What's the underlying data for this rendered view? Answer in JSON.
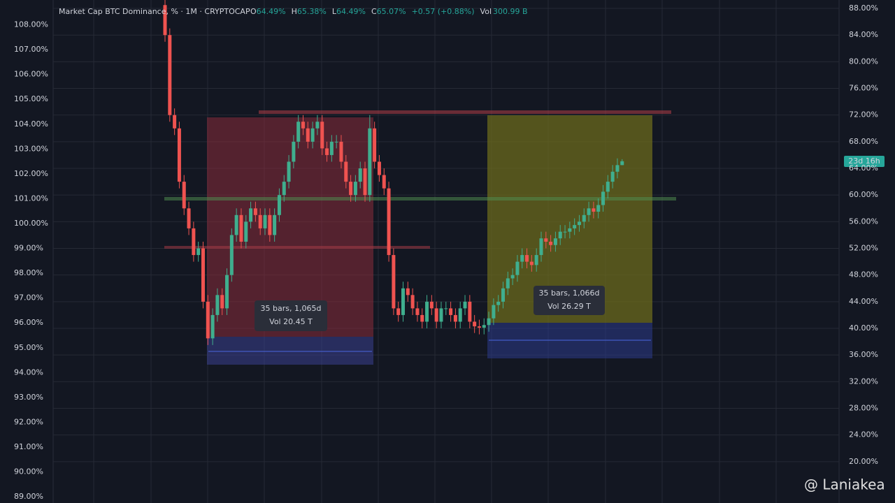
{
  "chart_data": {
    "type": "candlestick",
    "title": "Market Cap BTC Dominance, % · 1M · CRYPTOCAP",
    "ohlc_header": [
      {
        "label": "O",
        "value": "64.49%"
      },
      {
        "label": "H",
        "value": "65.38%"
      },
      {
        "label": "L",
        "value": "64.49%"
      },
      {
        "label": "C",
        "value": "65.07%"
      }
    ],
    "change": "+0.57 (+0.88%)",
    "volume_label": "Vol",
    "volume_value": "300.99 B",
    "up_color": "#3fae8e",
    "down_color": "#ef5350",
    "open": [
      88.5,
      84,
      72,
      70,
      62,
      58,
      55,
      51,
      52,
      44,
      38.5,
      42,
      45,
      43,
      48,
      54,
      57,
      53,
      56,
      58,
      57,
      55,
      57,
      54,
      57,
      60,
      62,
      65,
      68,
      71,
      70,
      68,
      70,
      71,
      67,
      66,
      68,
      68,
      65,
      62,
      60,
      62,
      64,
      60,
      70,
      65,
      63,
      61,
      51,
      43,
      42,
      46,
      45,
      43,
      42,
      41,
      44,
      43,
      41,
      43,
      43,
      42,
      41,
      43,
      44,
      41,
      40.3,
      40.1,
      40.5,
      41.5,
      43.5,
      44,
      46,
      47.5,
      48,
      50,
      51,
      50,
      49.5,
      51,
      53.5,
      53,
      52.5,
      53.5,
      54.5,
      54.5,
      55,
      55.5,
      56,
      57,
      58,
      57.5,
      58.5,
      60.5,
      62,
      63.5,
      64.49
    ],
    "high": [
      89.5,
      85,
      73,
      71,
      63,
      59,
      56,
      53,
      53,
      45,
      43,
      46,
      46,
      49,
      55,
      58,
      58,
      57,
      59,
      59,
      58,
      58,
      58,
      58,
      61,
      63,
      66,
      69,
      72,
      72,
      71,
      71,
      72,
      72,
      68,
      69,
      69,
      69,
      66,
      63,
      63,
      65,
      65,
      72,
      71,
      66,
      64,
      62,
      52,
      44,
      47,
      47,
      46,
      44,
      43,
      45,
      45,
      44,
      44,
      44,
      44,
      43,
      44,
      45,
      45,
      42,
      41.3,
      41.5,
      42.5,
      44.5,
      45,
      47,
      48.5,
      49,
      51,
      52,
      52,
      51,
      52,
      54.5,
      54.5,
      54,
      54.5,
      55.5,
      55.5,
      56,
      56.5,
      57,
      58,
      59,
      59,
      59.5,
      61.5,
      63,
      64.5,
      65.5,
      65.38
    ],
    "low": [
      83,
      71,
      69,
      61,
      57,
      54,
      50,
      50,
      43,
      37.5,
      37.5,
      41,
      42,
      42,
      47,
      53,
      52,
      52,
      55,
      56,
      54,
      54,
      53,
      53,
      56,
      59,
      61,
      64,
      67,
      69,
      67,
      67,
      69,
      66,
      65,
      65,
      67,
      64,
      61,
      59,
      59,
      61,
      59,
      59,
      64,
      62,
      60,
      50,
      42,
      41,
      41,
      44,
      42,
      41,
      40,
      40,
      42,
      40,
      40,
      42,
      41,
      40,
      40,
      42,
      40,
      39.3,
      39.1,
      39.1,
      39.5,
      40.5,
      42.5,
      43,
      45,
      46.5,
      47,
      49,
      49,
      48.5,
      48.5,
      50,
      52,
      51.5,
      51.5,
      52.5,
      53.5,
      53.5,
      54,
      54.5,
      55,
      56,
      56.5,
      56.5,
      57.5,
      59.5,
      61,
      62.5,
      64.49
    ],
    "close": [
      84,
      72,
      70,
      62,
      58,
      55,
      51,
      52,
      44,
      38.5,
      42,
      45,
      43,
      48,
      54,
      57,
      53,
      56,
      58,
      57,
      55,
      57,
      54,
      57,
      60,
      62,
      65,
      68,
      71,
      70,
      68,
      70,
      71,
      67,
      66,
      68,
      68,
      65,
      62,
      60,
      62,
      64,
      60,
      70,
      65,
      63,
      61,
      51,
      43,
      42,
      46,
      45,
      43,
      42,
      41,
      44,
      43,
      41,
      43,
      43,
      42,
      41,
      43,
      44,
      41,
      40.3,
      40.1,
      40.5,
      41.5,
      43.5,
      44,
      46,
      47.5,
      48,
      50,
      51,
      50,
      49.5,
      51,
      53.5,
      53,
      52.5,
      53.5,
      54.5,
      54.5,
      55,
      55.5,
      56,
      57,
      58,
      57.5,
      58.5,
      60.5,
      62,
      63.5,
      64.49,
      65.07
    ],
    "ylim": [
      88.75,
      109.0
    ],
    "yticks": [
      {
        "value": 108,
        "label": "108.00%"
      },
      {
        "value": 107,
        "label": "107.00%"
      },
      {
        "value": 106,
        "label": "106.00%"
      },
      {
        "value": 105,
        "label": "105.00%"
      },
      {
        "value": 104,
        "label": "104.00%"
      },
      {
        "value": 103,
        "label": "103.00%"
      },
      {
        "value": 102,
        "label": "102.00%"
      },
      {
        "value": 101,
        "label": "101.00%"
      },
      {
        "value": 100,
        "label": "100.00%"
      },
      {
        "value": 99,
        "label": "99.00%"
      },
      {
        "value": 98,
        "label": "98.00%"
      },
      {
        "value": 97,
        "label": "97.00%"
      },
      {
        "value": 96,
        "label": "96.00%"
      },
      {
        "value": 95,
        "label": "95.00%"
      },
      {
        "value": 94,
        "label": "94.00%"
      },
      {
        "value": 93,
        "label": "93.00%"
      },
      {
        "value": 92,
        "label": "92.00%"
      },
      {
        "value": 91,
        "label": "91.00%"
      },
      {
        "value": 90,
        "label": "90.00%"
      },
      {
        "value": 89,
        "label": "89.00%"
      }
    ],
    "y2lim": [
      13.8,
      89.26
    ],
    "y2ticks": [
      {
        "value": 88,
        "label": "88.00%"
      },
      {
        "value": 84,
        "label": "84.00%"
      },
      {
        "value": 80,
        "label": "80.00%"
      },
      {
        "value": 76,
        "label": "76.00%"
      },
      {
        "value": 72,
        "label": "72.00%"
      },
      {
        "value": 68,
        "label": "68.00%"
      },
      {
        "value": 64,
        "label": "64.00%"
      },
      {
        "value": 60,
        "label": "60.00%"
      },
      {
        "value": 56,
        "label": "56.00%"
      },
      {
        "value": 52,
        "label": "52.00%"
      },
      {
        "value": 48,
        "label": "48.00%"
      },
      {
        "value": 44,
        "label": "44.00%"
      },
      {
        "value": 40,
        "label": "40.00%"
      },
      {
        "value": 36,
        "label": "36.00%"
      },
      {
        "value": 32,
        "label": "32.00%"
      },
      {
        "value": 28,
        "label": "28.00%"
      },
      {
        "value": 24,
        "label": "24.00%"
      },
      {
        "value": 20,
        "label": "20.00%"
      }
    ],
    "grid": true,
    "price_tag": "23d 16h",
    "annotations": [
      {
        "bars": "35 bars, 1,065d",
        "vol": "Vol 20.45 T"
      },
      {
        "bars": "35 bars, 1,066d",
        "vol": "Vol 26.29 T"
      }
    ]
  },
  "watermark": "@ Laniakea"
}
